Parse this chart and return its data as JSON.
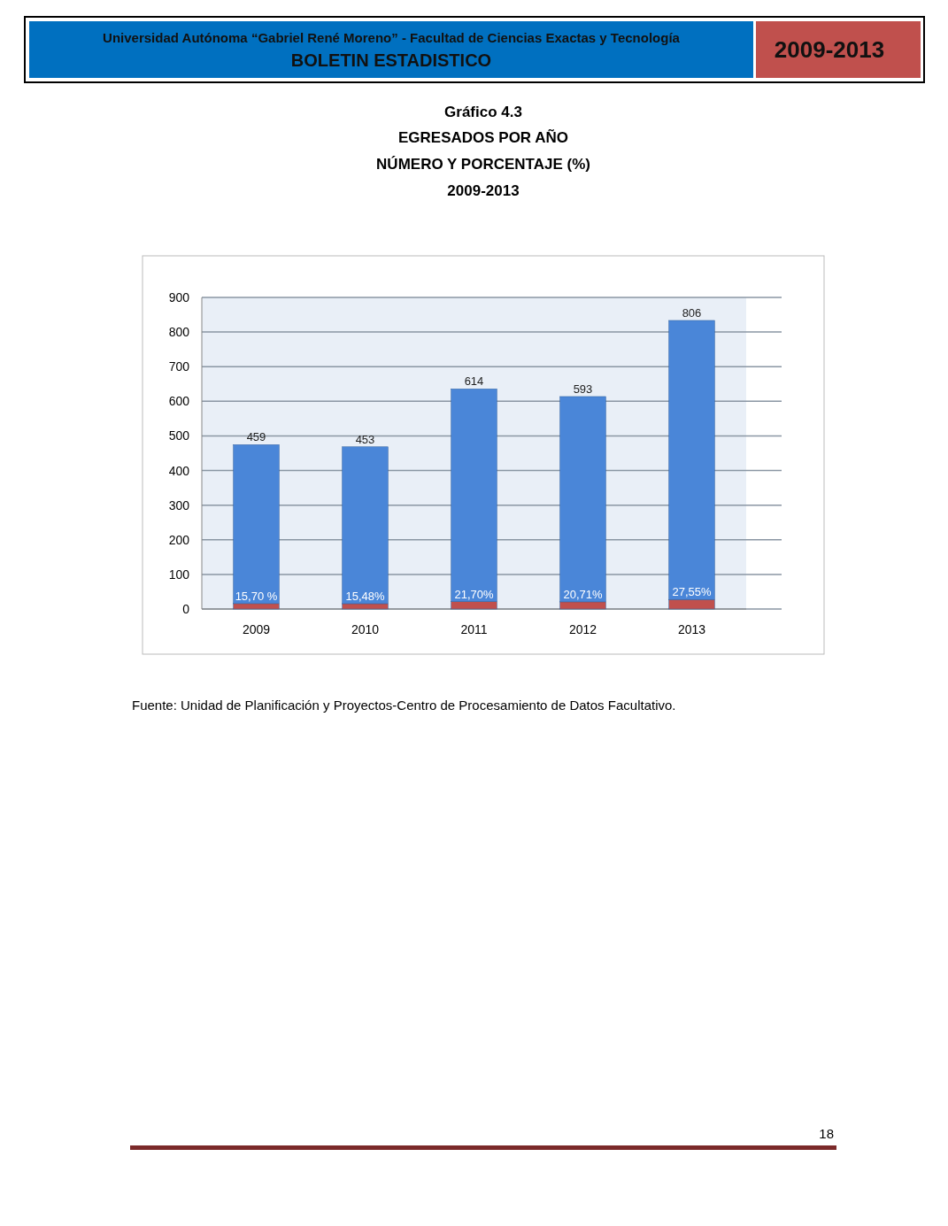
{
  "chart_data": {
    "type": "bar",
    "title": "Gráfico 4.3",
    "subtitle": "EGRESADOS POR AÑO\nNÚMERO Y PORCENTAJE (%)\n2009-2013",
    "categories": [
      "2009",
      "2010",
      "2011",
      "2012",
      "2013"
    ],
    "series": [
      {
        "color": "#c0504d",
        "values": [
          15.7,
          15.48,
          21.7,
          20.71,
          27.55
        ],
        "value_labels": [
          "15,70 %",
          "15,48%",
          "21,70%",
          "20,71%",
          "27,55%"
        ]
      },
      {
        "color": "#4a86d8",
        "values": [
          459,
          453,
          614,
          593,
          806
        ],
        "value_labels": [
          "459",
          "453",
          "614",
          "593",
          "806"
        ]
      }
    ],
    "stacked": true,
    "ylim": [
      0,
      900
    ],
    "yticks": [
      0,
      100,
      200,
      300,
      400,
      500,
      600,
      700,
      800,
      900
    ],
    "grid": "y",
    "annotations": [
      "Universidad Autónoma “Gabriel René Moreno” - Facultad de Ciencias Exactas y Tecnología",
      "BOLETIN ESTADISTICO",
      "2009-2013",
      "Fuente: Unidad de Planificación y Proyectos-Centro de Procesamiento de Datos Facultativo.",
      "18"
    ]
  }
}
